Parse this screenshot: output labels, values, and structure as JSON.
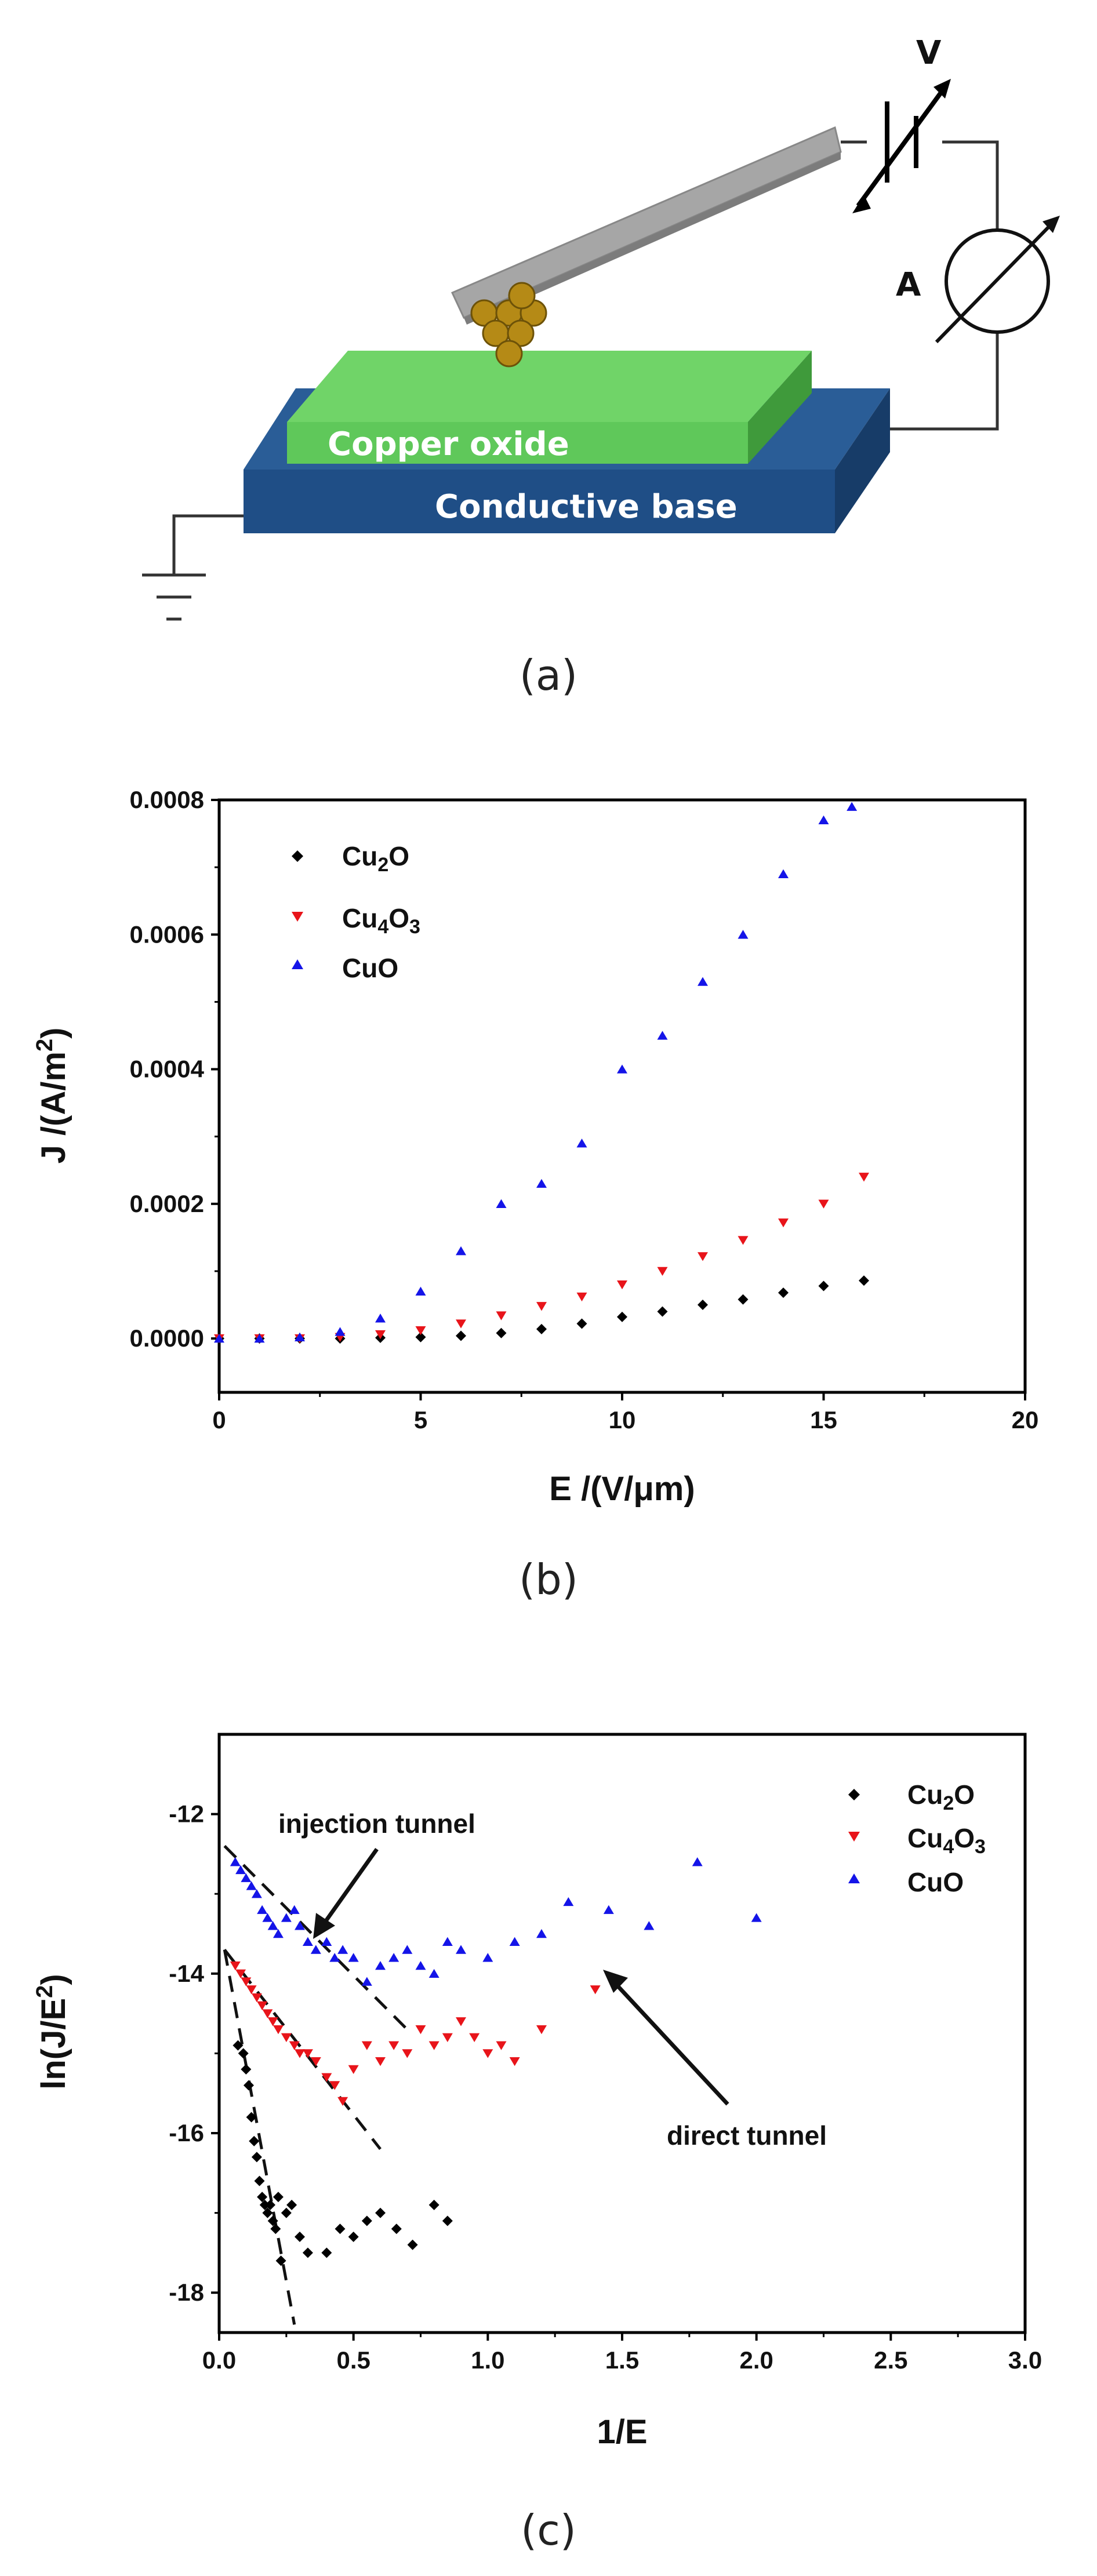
{
  "diagram": {
    "voltage_label": "V",
    "ammeter_label": "A",
    "oxide_label": "Copper oxide",
    "base_label": "Conductive base",
    "colors": {
      "oxide": "#5fc85a",
      "base": "#1f4e86",
      "probe": "#9a9a9a",
      "tip": "#b58a16"
    }
  },
  "captions": {
    "a": "(a)",
    "b": "(b)",
    "c": "(c)"
  },
  "chart_data": [
    {
      "type": "scatter",
      "xlabel": "E /(V/μm)",
      "ylabel_main": "J /(A/m",
      "ylabel_sup": "2",
      "ylabel_end": ")",
      "xlim": [
        0,
        20
      ],
      "ylim": [
        -8e-05,
        0.0008
      ],
      "xticks": [
        "0",
        "5",
        "10",
        "15",
        "20"
      ],
      "yticks": [
        "0.0000",
        "0.0002",
        "0.0004",
        "0.0006",
        "0.0008"
      ],
      "ytick_values": [
        0,
        0.0002,
        0.0004,
        0.0006,
        0.0008
      ],
      "xtick_values": [
        0,
        5,
        10,
        15,
        20
      ],
      "legend_position": "top-left",
      "series": [
        {
          "name_main": "Cu",
          "name_sub1": "2",
          "name_mid": "O",
          "name_sub2": "",
          "marker": "diamond",
          "color": "#000000",
          "x": [
            0,
            1,
            2,
            3,
            4,
            5,
            6,
            7,
            8,
            9,
            10,
            11,
            12,
            13,
            14,
            15,
            16
          ],
          "y": [
            0,
            0,
            0,
            0,
            1e-06,
            2e-06,
            4e-06,
            8e-06,
            1.4e-05,
            2.2e-05,
            3.2e-05,
            4e-05,
            5e-05,
            5.8e-05,
            6.8e-05,
            7.8e-05,
            8.6e-05
          ]
        },
        {
          "name_main": "Cu",
          "name_sub1": "4",
          "name_mid": "O",
          "name_sub2": "3",
          "marker": "triangle-down",
          "color": "#e8141a",
          "x": [
            0,
            1,
            2,
            3,
            4,
            5,
            6,
            7,
            8,
            9,
            10,
            11,
            12,
            13,
            14,
            15,
            16
          ],
          "y": [
            0,
            0,
            0,
            2e-06,
            6e-06,
            1.2e-05,
            2.2e-05,
            3.4e-05,
            4.8e-05,
            6.2e-05,
            8e-05,
            0.0001,
            0.000122,
            0.000146,
            0.000172,
            0.0002,
            0.00024
          ]
        },
        {
          "name_main": "CuO",
          "name_sub1": "",
          "name_mid": "",
          "name_sub2": "",
          "marker": "triangle-up",
          "color": "#1414e8",
          "x": [
            0,
            1,
            2,
            3,
            4,
            5,
            6,
            7,
            8,
            9,
            10,
            11,
            12,
            13,
            14,
            15,
            15.7
          ],
          "y": [
            0,
            0,
            2e-06,
            1e-05,
            3e-05,
            7e-05,
            0.00013,
            0.0002,
            0.00023,
            0.00029,
            0.0004,
            0.00045,
            0.00053,
            0.0006,
            0.00069,
            0.00077,
            0.00079
          ]
        }
      ]
    },
    {
      "type": "scatter",
      "xlabel": "1/E",
      "ylabel_main": "ln(J/E",
      "ylabel_sup": "2",
      "ylabel_end": ")",
      "xlim": [
        0,
        3
      ],
      "ylim": [
        -18.5,
        -11
      ],
      "xticks": [
        "0.0",
        "0.5",
        "1.0",
        "1.5",
        "2.0",
        "2.5",
        "3.0"
      ],
      "xtick_values": [
        0,
        0.5,
        1.0,
        1.5,
        2.0,
        2.5,
        3.0
      ],
      "yticks": [
        "-12",
        "-14",
        "-16",
        "-18"
      ],
      "ytick_values": [
        -12,
        -14,
        -16,
        -18
      ],
      "legend_position": "top-right",
      "annotations": [
        {
          "text": "injection tunnel",
          "x": 0.6,
          "y": -12.2
        },
        {
          "text": "direct tunnel",
          "x": 2.0,
          "y": -16.8
        }
      ],
      "fit_lines": [
        {
          "x": [
            0.02,
            0.28
          ],
          "y": [
            -13.7,
            -18.4
          ]
        },
        {
          "x": [
            0.02,
            0.6
          ],
          "y": [
            -13.7,
            -16.2
          ]
        },
        {
          "x": [
            0.02,
            0.7
          ],
          "y": [
            -12.4,
            -14.7
          ]
        }
      ],
      "series": [
        {
          "name_main": "Cu",
          "name_sub1": "2",
          "name_mid": "O",
          "name_sub2": "",
          "marker": "diamond",
          "color": "#000000",
          "x": [
            0.07,
            0.09,
            0.1,
            0.11,
            0.12,
            0.13,
            0.14,
            0.15,
            0.16,
            0.17,
            0.18,
            0.19,
            0.2,
            0.21,
            0.22,
            0.23,
            0.25,
            0.27,
            0.3,
            0.33,
            0.4,
            0.45,
            0.5,
            0.55,
            0.6,
            0.66,
            0.72,
            0.8,
            0.85
          ],
          "y": [
            -14.9,
            -15.0,
            -15.2,
            -15.4,
            -15.8,
            -16.1,
            -16.3,
            -16.6,
            -16.8,
            -16.9,
            -17.0,
            -16.9,
            -17.1,
            -17.2,
            -16.8,
            -17.6,
            -17.0,
            -16.9,
            -17.3,
            -17.5,
            -17.5,
            -17.2,
            -17.3,
            -17.1,
            -17.0,
            -17.2,
            -17.4,
            -16.9,
            -17.1
          ]
        },
        {
          "name_main": "Cu",
          "name_sub1": "4",
          "name_mid": "O",
          "name_sub2": "3",
          "marker": "triangle-down",
          "color": "#e8141a",
          "x": [
            0.06,
            0.08,
            0.1,
            0.12,
            0.14,
            0.16,
            0.18,
            0.2,
            0.22,
            0.25,
            0.28,
            0.3,
            0.33,
            0.36,
            0.4,
            0.43,
            0.46,
            0.5,
            0.55,
            0.6,
            0.65,
            0.7,
            0.75,
            0.8,
            0.85,
            0.9,
            0.95,
            1.0,
            1.05,
            1.1,
            1.2,
            1.4
          ],
          "y": [
            -13.9,
            -14.0,
            -14.1,
            -14.2,
            -14.3,
            -14.4,
            -14.5,
            -14.6,
            -14.7,
            -14.8,
            -14.9,
            -15.0,
            -15.0,
            -15.1,
            -15.3,
            -15.4,
            -15.6,
            -15.2,
            -14.9,
            -15.1,
            -14.9,
            -15.0,
            -14.7,
            -14.9,
            -14.8,
            -14.6,
            -14.8,
            -15.0,
            -14.9,
            -15.1,
            -14.7,
            -14.2
          ]
        },
        {
          "name_main": "CuO",
          "name_sub1": "",
          "name_mid": "",
          "name_sub2": "",
          "marker": "triangle-up",
          "color": "#1414e8",
          "x": [
            0.06,
            0.08,
            0.1,
            0.12,
            0.14,
            0.16,
            0.18,
            0.2,
            0.22,
            0.25,
            0.28,
            0.3,
            0.33,
            0.36,
            0.4,
            0.43,
            0.46,
            0.5,
            0.55,
            0.6,
            0.65,
            0.7,
            0.75,
            0.8,
            0.85,
            0.9,
            1.0,
            1.1,
            1.2,
            1.3,
            1.45,
            1.6,
            1.78,
            2.0
          ],
          "y": [
            -12.6,
            -12.7,
            -12.8,
            -12.9,
            -13.0,
            -13.2,
            -13.3,
            -13.4,
            -13.5,
            -13.3,
            -13.2,
            -13.4,
            -13.6,
            -13.7,
            -13.6,
            -13.8,
            -13.7,
            -13.8,
            -14.1,
            -13.9,
            -13.8,
            -13.7,
            -13.9,
            -14.0,
            -13.6,
            -13.7,
            -13.8,
            -13.6,
            -13.5,
            -13.1,
            -13.2,
            -13.4,
            -12.6,
            -13.3
          ]
        }
      ]
    }
  ]
}
